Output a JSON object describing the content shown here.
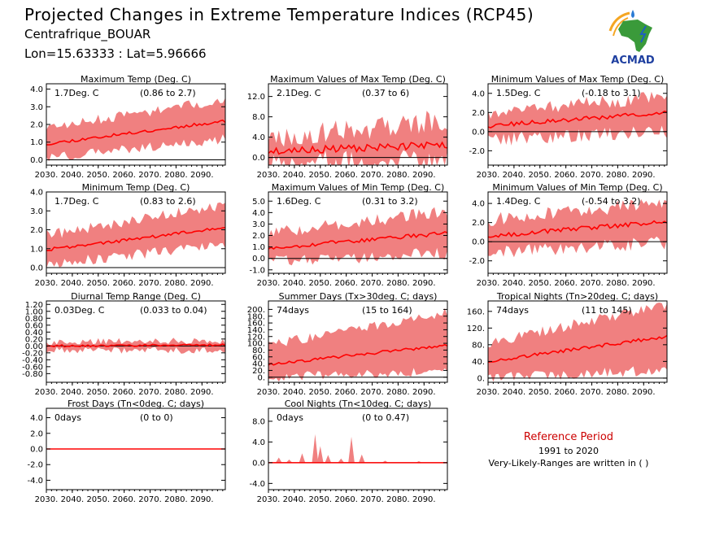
{
  "header": {
    "title": "Projected Changes in Extreme Temperature Indices (RCP45)",
    "subtitle": "Centrafrique_BOUAR",
    "coords": "Lon=15.63333 : Lat=5.96666"
  },
  "logo": {
    "text": "ACMAD",
    "icon": "africa-map-logo"
  },
  "reference": {
    "title": "Reference Period",
    "years": "1991 to 2020",
    "note": "Very-Likely-Ranges are written in ( )"
  },
  "colors": {
    "band": "#f08080",
    "median": "#ff0000",
    "axis": "#000000",
    "ref_title": "#cc0000"
  },
  "chart_data": [
    {
      "type": "area",
      "title": "Maximum Temp (Deg. C)",
      "value_label": "1.7Deg. C",
      "range_label": "(0.86 to 2.7)",
      "x_range": [
        2030,
        2099
      ],
      "x_ticks": [
        "2030.",
        "2040.",
        "2050.",
        "2060.",
        "2070.",
        "2080.",
        "2090."
      ],
      "ylim": [
        -0.3,
        4.3
      ],
      "y_ticks": [
        0,
        1,
        2,
        3,
        4
      ],
      "y_tick_labels": [
        "0.0",
        "1.0",
        "2.0",
        "3.0",
        "4.0"
      ],
      "median_start": 0.9,
      "median_end": 2.2,
      "band_lower_start": 0.2,
      "band_lower_end": 1.3,
      "band_upper_start": 1.7,
      "band_upper_end": 3.3,
      "noise": 0.35,
      "seed": 11
    },
    {
      "type": "area",
      "title": "Maximum Values of Max Temp (Deg. C)",
      "value_label": "2.1Deg. C",
      "range_label": "(0.37 to 6)",
      "x_range": [
        2030,
        2099
      ],
      "x_ticks": [
        "2030.",
        "2040.",
        "2050.",
        "2060.",
        "2070.",
        "2080.",
        "2090."
      ],
      "ylim": [
        -1.5,
        14.5
      ],
      "y_ticks": [
        0,
        4,
        8,
        12
      ],
      "y_tick_labels": [
        "0.0",
        "4.0",
        "8.0",
        "12.0"
      ],
      "median_start": 1.2,
      "median_end": 2.5,
      "band_lower_start": 0.0,
      "band_lower_end": 0.3,
      "band_upper_start": 3.0,
      "band_upper_end": 6.5,
      "noise": 2.8,
      "seed": 23
    },
    {
      "type": "area",
      "title": "Minimum Values of Max Temp (Deg. C)",
      "value_label": "1.5Deg. C",
      "range_label": "(-0.18 to 3.1)",
      "x_range": [
        2030,
        2099
      ],
      "x_ticks": [
        "2030.",
        "2040.",
        "2050.",
        "2060.",
        "2070.",
        "2080.",
        "2090."
      ],
      "ylim": [
        -3.5,
        5.0
      ],
      "y_ticks": [
        -2,
        0,
        2,
        4
      ],
      "y_tick_labels": [
        "-2.0",
        "0.0",
        "2.0",
        "4.0"
      ],
      "median_start": 0.6,
      "median_end": 2.0,
      "band_lower_start": -0.6,
      "band_lower_end": 0.3,
      "band_upper_start": 1.7,
      "band_upper_end": 3.4,
      "noise": 0.9,
      "seed": 37
    },
    {
      "type": "area",
      "title": "Minimum Temp (Deg. C)",
      "value_label": "1.7Deg. C",
      "range_label": "(0.83 to 2.6)",
      "x_range": [
        2030,
        2099
      ],
      "x_ticks": [
        "2030.",
        "2040.",
        "2050.",
        "2060.",
        "2070.",
        "2080.",
        "2090."
      ],
      "ylim": [
        -0.3,
        4.0
      ],
      "y_ticks": [
        0,
        1,
        2,
        3,
        4
      ],
      "y_tick_labels": [
        "0.0",
        "1.0",
        "2.0",
        "3.0",
        "4.0"
      ],
      "median_start": 0.95,
      "median_end": 2.1,
      "band_lower_start": 0.3,
      "band_lower_end": 1.3,
      "band_upper_start": 1.6,
      "band_upper_end": 3.2,
      "noise": 0.35,
      "seed": 41
    },
    {
      "type": "area",
      "title": "Maximum Values of Min Temp (Deg. C)",
      "value_label": "1.6Deg. C",
      "range_label": "(0.31 to 3.2)",
      "x_range": [
        2030,
        2099
      ],
      "x_ticks": [
        "2030.",
        "2040.",
        "2050.",
        "2060.",
        "2070.",
        "2080.",
        "2090."
      ],
      "ylim": [
        -1.3,
        5.8
      ],
      "y_ticks": [
        -1,
        0,
        1,
        2,
        3,
        4,
        5
      ],
      "y_tick_labels": [
        "-1.0",
        "0.0",
        "1.0",
        "2.0",
        "3.0",
        "4.0",
        "5.0"
      ],
      "median_start": 0.9,
      "median_end": 2.2,
      "band_lower_start": -0.1,
      "band_lower_end": 0.7,
      "band_upper_start": 2.0,
      "band_upper_end": 3.9,
      "noise": 0.7,
      "seed": 53
    },
    {
      "type": "area",
      "title": "Minimum Values of Min Temp (Deg. C)",
      "value_label": "1.4Deg. C",
      "range_label": "(-0.54 to 3.2)",
      "x_range": [
        2030,
        2099
      ],
      "x_ticks": [
        "2030.",
        "2040.",
        "2050.",
        "2060.",
        "2070.",
        "2080.",
        "2090."
      ],
      "ylim": [
        -3.3,
        5.2
      ],
      "y_ticks": [
        -2,
        0,
        2,
        4
      ],
      "y_tick_labels": [
        "-2.0",
        "0.0",
        "2.0",
        "4.0"
      ],
      "median_start": 0.6,
      "median_end": 2.1,
      "band_lower_start": -0.9,
      "band_lower_end": 0.2,
      "band_upper_start": 2.0,
      "band_upper_end": 3.8,
      "noise": 0.9,
      "seed": 67
    },
    {
      "type": "area",
      "title": "Diurnal Temp Range (Deg. C)",
      "value_label": "0.03Deg. C",
      "range_label": "(0.033 to 0.04)",
      "x_range": [
        2030,
        2099
      ],
      "x_ticks": [
        "2030.",
        "2040.",
        "2050.",
        "2060.",
        "2070.",
        "2080.",
        "2090."
      ],
      "ylim": [
        -1.05,
        1.3
      ],
      "y_ticks": [
        -0.8,
        -0.6,
        -0.4,
        -0.2,
        0,
        0.2,
        0.4,
        0.6,
        0.8,
        1.0,
        1.2
      ],
      "y_tick_labels": [
        "-0.80",
        "-0.60",
        "-0.40",
        "-0.20",
        "0.00",
        "0.20",
        "0.40",
        "0.60",
        "0.80",
        "1.00",
        "1.20"
      ],
      "median_start": 0.0,
      "median_end": 0.03,
      "band_lower_start": -0.08,
      "band_lower_end": -0.1,
      "band_upper_start": 0.08,
      "band_upper_end": 0.12,
      "noise": 0.12,
      "seed": 79
    },
    {
      "type": "area",
      "title": "Summer Days (Tx>30deg. C; days)",
      "value_label": "74days",
      "range_label": "(15 to 164)",
      "x_range": [
        2030,
        2099
      ],
      "x_ticks": [
        "2030.",
        "2040.",
        "2050.",
        "2060.",
        "2070.",
        "2080.",
        "2090."
      ],
      "ylim": [
        -15,
        225
      ],
      "y_ticks": [
        0,
        20,
        40,
        60,
        80,
        100,
        120,
        140,
        160,
        180,
        200
      ],
      "y_tick_labels": [
        "0.",
        "20.",
        "40.",
        "60.",
        "80.",
        "100.",
        "120.",
        "140.",
        "160.",
        "180.",
        "200."
      ],
      "median_start": 38,
      "median_end": 95,
      "band_lower_start": 5,
      "band_lower_end": 25,
      "band_upper_start": 90,
      "band_upper_end": 185,
      "noise": 18,
      "seed": 83
    },
    {
      "type": "area",
      "title": "Tropical Nights (Tn>20deg. C; days)",
      "value_label": "74days",
      "range_label": "(11 to 145)",
      "x_range": [
        2030,
        2099
      ],
      "x_ticks": [
        "2030.",
        "2040.",
        "2050.",
        "2060.",
        "2070.",
        "2080.",
        "2090."
      ],
      "ylim": [
        -10,
        185
      ],
      "y_ticks": [
        0,
        40,
        80,
        120,
        160
      ],
      "y_tick_labels": [
        "0.",
        "40.",
        "80.",
        "120.",
        "160."
      ],
      "median_start": 40,
      "median_end": 100,
      "band_lower_start": 5,
      "band_lower_end": 25,
      "band_upper_start": 80,
      "band_upper_end": 170,
      "noise": 16,
      "seed": 97
    },
    {
      "type": "area",
      "title": "Frost Days (Tn<0deg. C; days)",
      "value_label": "0days",
      "range_label": "(0 to 0)",
      "x_range": [
        2030,
        2099
      ],
      "x_ticks": [
        "2030.",
        "2040.",
        "2050.",
        "2060.",
        "2070.",
        "2080.",
        "2090."
      ],
      "ylim": [
        -5.2,
        5.2
      ],
      "y_ticks": [
        -4,
        -2,
        0,
        2,
        4
      ],
      "y_tick_labels": [
        "-4.0",
        "-2.0",
        "0.0",
        "2.0",
        "4.0"
      ],
      "median_start": 0,
      "median_end": 0,
      "band_lower_start": 0,
      "band_lower_end": 0,
      "band_upper_start": 0,
      "band_upper_end": 0,
      "noise": 0,
      "seed": 101,
      "spikes": []
    },
    {
      "type": "area",
      "title": "Cool Nights (Tn<10deg. C; days)",
      "value_label": "0days",
      "range_label": "(0 to 0.47)",
      "x_range": [
        2030,
        2099
      ],
      "x_ticks": [
        "2030.",
        "2040.",
        "2050.",
        "2060.",
        "2070.",
        "2080.",
        "2090."
      ],
      "ylim": [
        -5.2,
        10.5
      ],
      "y_ticks": [
        -4,
        0,
        4,
        8
      ],
      "y_tick_labels": [
        "-4.0",
        "0.0",
        "4.0",
        "8.0"
      ],
      "median_start": 0,
      "median_end": 0,
      "band_lower_start": 0,
      "band_lower_end": 0,
      "band_upper_start": 0,
      "band_upper_end": 0,
      "noise": 0,
      "seed": 113,
      "spikes": [
        [
          2034,
          1.0
        ],
        [
          2038,
          0.6
        ],
        [
          2043,
          1.8
        ],
        [
          2048,
          5.5
        ],
        [
          2050,
          3.2
        ],
        [
          2053,
          1.5
        ],
        [
          2058,
          0.8
        ],
        [
          2062,
          5.0
        ],
        [
          2066,
          1.6
        ],
        [
          2075,
          0.4
        ],
        [
          2088,
          0.3
        ]
      ]
    }
  ]
}
